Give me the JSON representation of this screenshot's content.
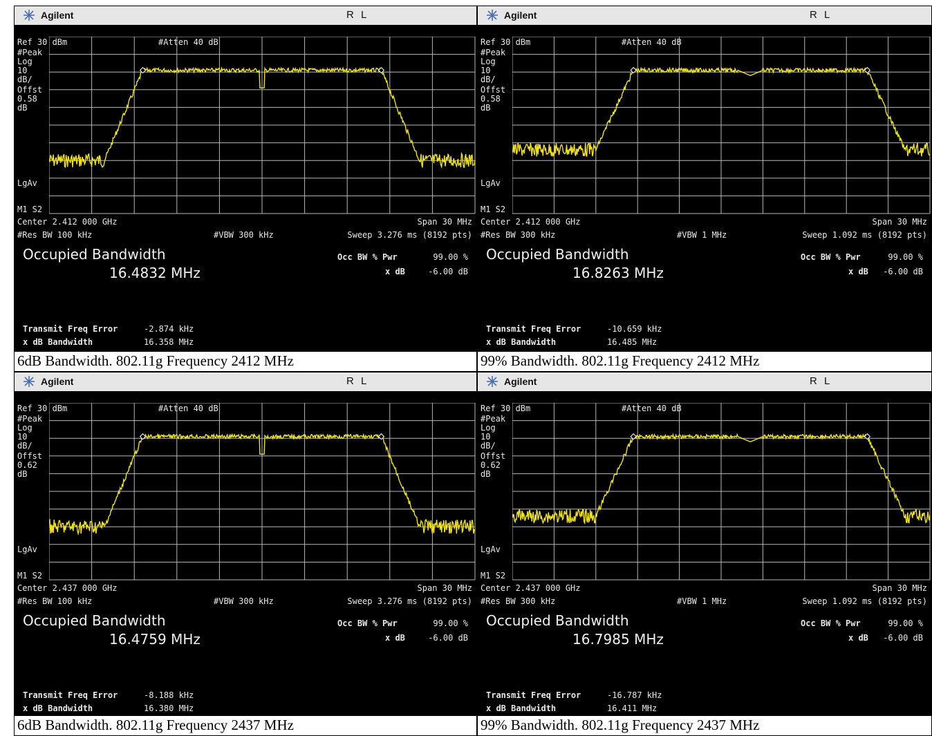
{
  "brand": "Agilent",
  "rl": "R L",
  "panels": [
    {
      "ref": "Ref 30 dBm",
      "atten": "#Atten 40 dB",
      "left_labels": [
        "#Peak",
        "Log",
        "10",
        "dB/",
        "Offst",
        "0.58",
        "dB"
      ],
      "lgav": "LgAv",
      "m1s2": "M1  S2",
      "center": "Center 2.412 000 GHz",
      "span": "Span 30 MHz",
      "res_bw": "#Res BW 100 kHz",
      "vbw": "#VBW 300 kHz",
      "sweep": "Sweep 3.276 ms (8192 pts)",
      "occ_title": "Occupied Bandwidth",
      "occ_value": "16.4832 MHz",
      "occ_pwr_label": "Occ BW % Pwr",
      "occ_pwr_value": "99.00 %",
      "xdb_label": "x dB",
      "xdb_value": "-6.00 dB",
      "tfe_label": "Transmit Freq Error",
      "tfe_value": "-2.874 kHz",
      "xbw_label": "x dB Bandwidth",
      "xbw_value": "16.358 MHz",
      "caption": "6dB Bandwidth. 802.11g Frequency 2412 MHz"
    },
    {
      "ref": "Ref 30 dBm",
      "atten": "#Atten 40 dB",
      "left_labels": [
        "#Peak",
        "Log",
        "10",
        "dB/",
        "Offst",
        "0.58",
        "dB"
      ],
      "lgav": "LgAv",
      "m1s2": "M1  S2",
      "center": "Center 2.412 000 GHz",
      "span": "Span 30 MHz",
      "res_bw": "#Res BW 300 kHz",
      "vbw": "#VBW 1 MHz",
      "sweep": "Sweep 1.092 ms (8192 pts)",
      "occ_title": "Occupied Bandwidth",
      "occ_value": "16.8263 MHz",
      "occ_pwr_label": "Occ BW % Pwr",
      "occ_pwr_value": "99.00 %",
      "xdb_label": "x dB",
      "xdb_value": "-6.00 dB",
      "tfe_label": "Transmit Freq Error",
      "tfe_value": "-10.659 kHz",
      "xbw_label": "x dB Bandwidth",
      "xbw_value": "16.485 MHz",
      "caption": "99% Bandwidth. 802.11g Frequency 2412 MHz"
    },
    {
      "ref": "Ref 30 dBm",
      "atten": "#Atten 40 dB",
      "left_labels": [
        "#Peak",
        "Log",
        "10",
        "dB/",
        "Offst",
        "0.62",
        "dB"
      ],
      "lgav": "LgAv",
      "m1s2": "M1  S2",
      "center": "Center 2.437 000 GHz",
      "span": "Span 30 MHz",
      "res_bw": "#Res BW 100 kHz",
      "vbw": "#VBW 300 kHz",
      "sweep": "Sweep 3.276 ms (8192 pts)",
      "occ_title": "Occupied Bandwidth",
      "occ_value": "16.4759 MHz",
      "occ_pwr_label": "Occ BW % Pwr",
      "occ_pwr_value": "99.00 %",
      "xdb_label": "x dB",
      "xdb_value": "-6.00 dB",
      "tfe_label": "Transmit Freq Error",
      "tfe_value": "-8.188 kHz",
      "xbw_label": "x dB Bandwidth",
      "xbw_value": "16.380 MHz",
      "caption": "6dB Bandwidth. 802.11g Frequency 2437 MHz"
    },
    {
      "ref": "Ref 30 dBm",
      "atten": "#Atten 40 dB",
      "left_labels": [
        "#Peak",
        "Log",
        "10",
        "dB/",
        "Offst",
        "0.62",
        "dB"
      ],
      "lgav": "LgAv",
      "m1s2": "M1  S2",
      "center": "Center 2.437 000 GHz",
      "span": "Span 30 MHz",
      "res_bw": "#Res BW 300 kHz",
      "vbw": "#VBW 1 MHz",
      "sweep": "Sweep 1.092 ms (8192 pts)",
      "occ_title": "Occupied Bandwidth",
      "occ_value": "16.7985 MHz",
      "occ_pwr_label": "Occ BW % Pwr",
      "occ_pwr_value": "99.00 %",
      "xdb_label": "x dB",
      "xdb_value": "-6.00 dB",
      "tfe_label": "Transmit Freq Error",
      "tfe_value": "-16.787 kHz",
      "xbw_label": "x dB Bandwidth",
      "xbw_value": "16.411 MHz",
      "caption": "99% Bandwidth. 802.11g Frequency 2437 MHz"
    }
  ],
  "colors": {
    "trace": "#f0e21a",
    "grid": "#b8b8b8",
    "screen": "#000000",
    "titlebar": "#e6e6e6"
  }
}
